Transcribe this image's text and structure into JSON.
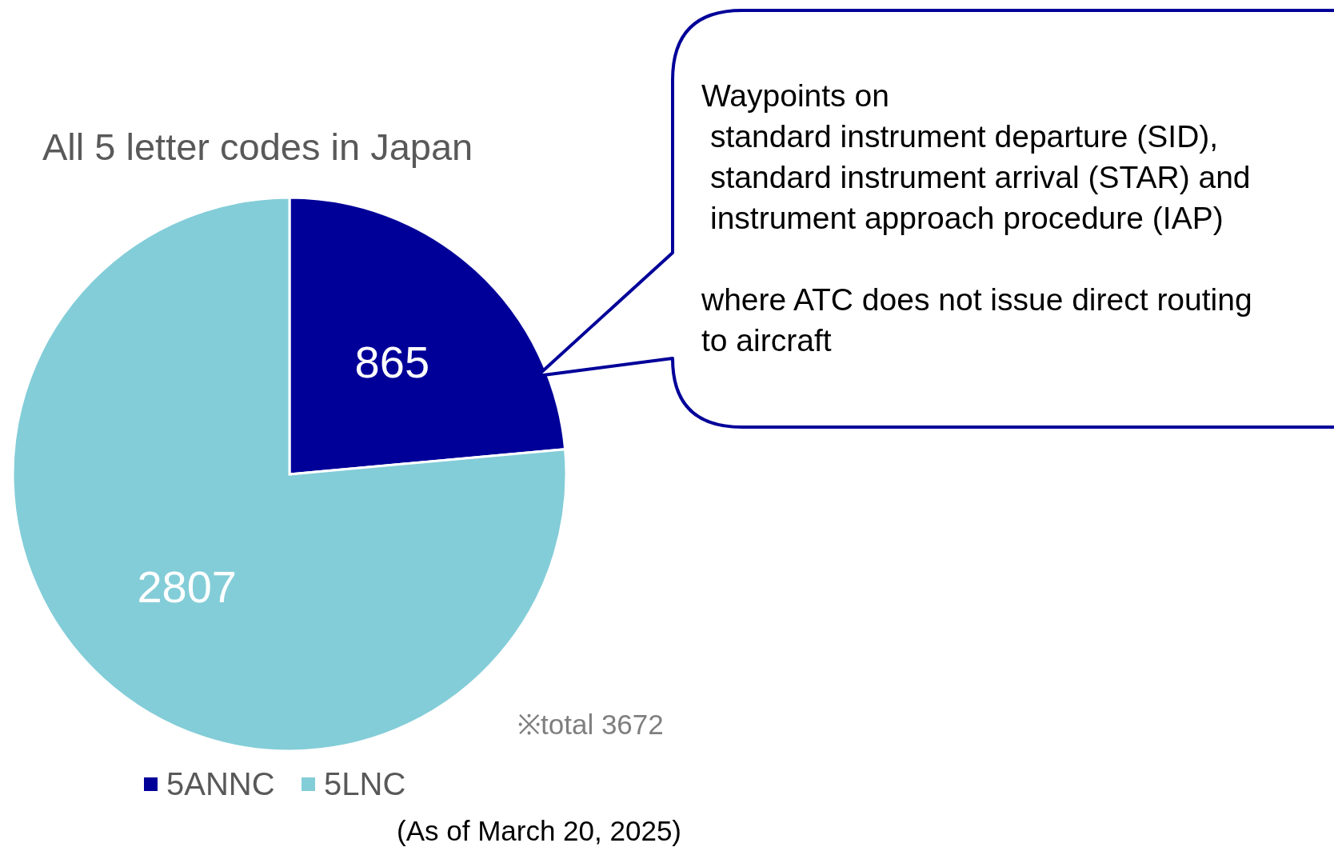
{
  "chart_data": {
    "type": "pie",
    "title": "All 5 letter codes in Japan",
    "categories": [
      "5ANNC",
      "5LNC"
    ],
    "values": [
      865,
      2807
    ],
    "colors": [
      "#000099",
      "#83cdd8"
    ],
    "data_labels": true,
    "legend": "bottom",
    "annotations": [
      "Waypoints on",
      "standard instrument departure (SID),",
      "standard instrument arrival (STAR) and",
      "instrument approach procedure (IAP)",
      "where ATC does not issue direct routing",
      "to aircraft",
      "※total 3672",
      "(As of March 20, 2025)"
    ]
  }
}
